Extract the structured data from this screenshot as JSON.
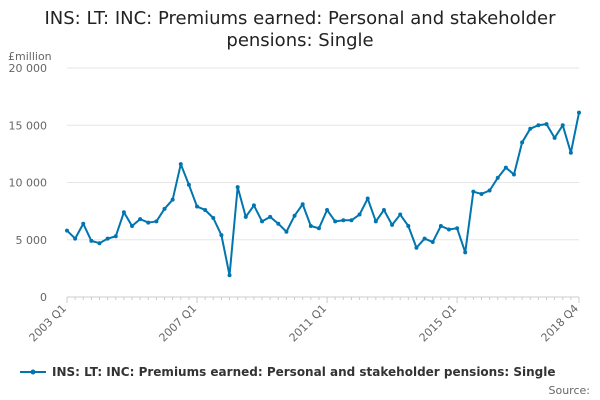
{
  "chart_data": {
    "type": "line",
    "title_line1": "INS: LT: INC: Premiums earned: Personal and stakeholder",
    "title_line2": "pensions: Single",
    "ylabel": "£million",
    "ylim": [
      0,
      20000
    ],
    "y_ticks": [
      "0",
      "5 000",
      "10 000",
      "15 000",
      "20 000"
    ],
    "x_ticks": [
      "2003 Q1",
      "2007 Q1",
      "2011 Q1",
      "2015 Q1",
      "2018 Q4"
    ],
    "grid": true,
    "legend_position": "bottom",
    "source_label": "Source:",
    "x": [
      "2003 Q1",
      "2003 Q2",
      "2003 Q3",
      "2003 Q4",
      "2004 Q1",
      "2004 Q2",
      "2004 Q3",
      "2004 Q4",
      "2005 Q1",
      "2005 Q2",
      "2005 Q3",
      "2005 Q4",
      "2006 Q1",
      "2006 Q2",
      "2006 Q3",
      "2006 Q4",
      "2007 Q1",
      "2007 Q2",
      "2007 Q3",
      "2007 Q4",
      "2008 Q1",
      "2008 Q2",
      "2008 Q3",
      "2008 Q4",
      "2009 Q1",
      "2009 Q2",
      "2009 Q3",
      "2009 Q4",
      "2010 Q1",
      "2010 Q2",
      "2010 Q3",
      "2010 Q4",
      "2011 Q1",
      "2011 Q2",
      "2011 Q3",
      "2011 Q4",
      "2012 Q1",
      "2012 Q2",
      "2012 Q3",
      "2012 Q4",
      "2013 Q1",
      "2013 Q2",
      "2013 Q3",
      "2013 Q4",
      "2014 Q1",
      "2014 Q2",
      "2014 Q3",
      "2014 Q4",
      "2015 Q1",
      "2015 Q2",
      "2015 Q3",
      "2015 Q4",
      "2016 Q1",
      "2016 Q2",
      "2016 Q3",
      "2016 Q4",
      "2017 Q1",
      "2017 Q2",
      "2017 Q3",
      "2017 Q4",
      "2018 Q1",
      "2018 Q2",
      "2018 Q3",
      "2018 Q4"
    ],
    "series": [
      {
        "name": "INS: LT: INC: Premiums earned: Personal and stakeholder pensions: Single",
        "color": "#0075b0",
        "values": [
          5800,
          5100,
          6400,
          4900,
          4700,
          5100,
          5300,
          7400,
          6200,
          6800,
          6500,
          6600,
          7700,
          8500,
          11600,
          9800,
          7900,
          7600,
          6900,
          5400,
          1900,
          9600,
          7000,
          8000,
          6600,
          7000,
          6400,
          5700,
          7100,
          8100,
          6200,
          6000,
          7600,
          6600,
          6700,
          6700,
          7200,
          8600,
          6600,
          7600,
          6300,
          7200,
          6200,
          4300,
          5100,
          4800,
          6200,
          5900,
          6000,
          3900,
          9200,
          9000,
          9300,
          10400,
          11300,
          10700,
          13500,
          14700,
          15000,
          15100,
          13900,
          15000,
          12600,
          16100
        ]
      }
    ]
  }
}
